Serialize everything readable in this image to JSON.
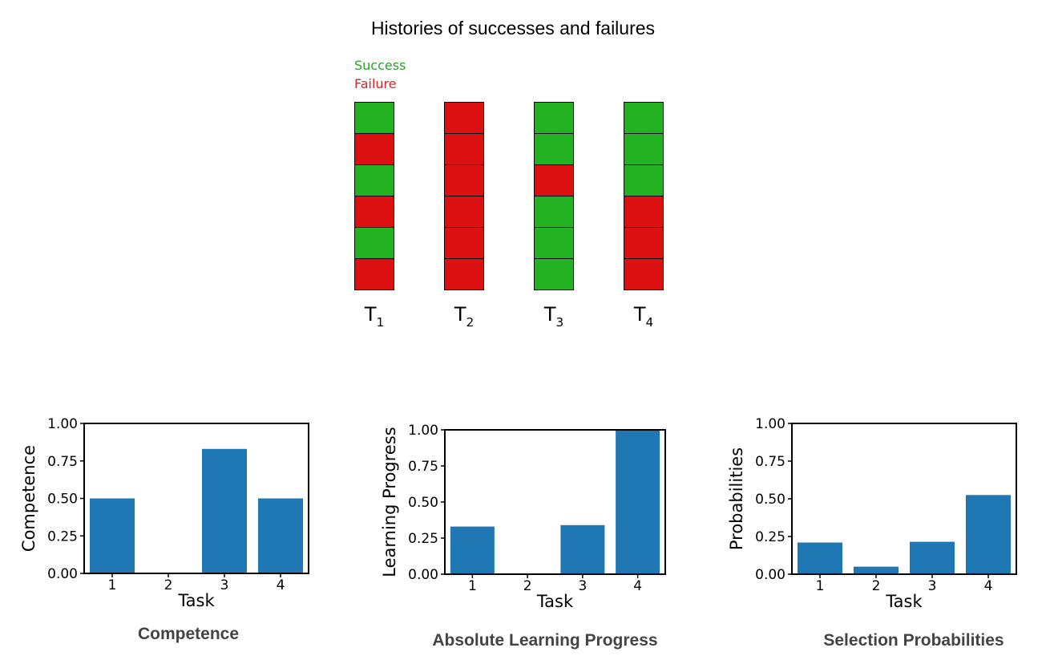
{
  "top_title": "Histories of successes and failures",
  "legend": {
    "success": "Success",
    "failure": "Failure"
  },
  "colors": {
    "success": "#22b222",
    "failure": "#dd1111",
    "bar": "#1f77b4"
  },
  "histories": [
    {
      "task": "T",
      "sub": "1",
      "cells": [
        "success",
        "failure",
        "success",
        "failure",
        "success",
        "failure"
      ]
    },
    {
      "task": "T",
      "sub": "2",
      "cells": [
        "failure",
        "failure",
        "failure",
        "failure",
        "failure",
        "failure"
      ]
    },
    {
      "task": "T",
      "sub": "3",
      "cells": [
        "success",
        "success",
        "failure",
        "success",
        "success",
        "success"
      ]
    },
    {
      "task": "T",
      "sub": "4",
      "cells": [
        "success",
        "success",
        "success",
        "failure",
        "failure",
        "failure"
      ]
    }
  ],
  "panel_titles": [
    "Competence",
    "Absolute Learning Progress",
    "Selection Probabilities"
  ],
  "chart_data": [
    {
      "type": "bar",
      "categories": [
        "1",
        "2",
        "3",
        "4"
      ],
      "values": [
        0.5,
        0.0,
        0.83,
        0.5
      ],
      "xlabel": "Task",
      "ylabel": "Competence",
      "ylim": [
        0,
        1
      ],
      "yticks": [
        "0.00",
        "0.25",
        "0.50",
        "0.75",
        "1.00"
      ],
      "grid": false
    },
    {
      "type": "bar",
      "categories": [
        "1",
        "2",
        "3",
        "4"
      ],
      "values": [
        0.33,
        0.0,
        0.34,
        1.0
      ],
      "xlabel": "Task",
      "ylabel": "Learning Progress",
      "ylim": [
        0,
        1
      ],
      "yticks": [
        "0.00",
        "0.25",
        "0.50",
        "0.75",
        "1.00"
      ],
      "grid": false
    },
    {
      "type": "bar",
      "categories": [
        "1",
        "2",
        "3",
        "4"
      ],
      "values": [
        0.21,
        0.05,
        0.215,
        0.525
      ],
      "xlabel": "Task",
      "ylabel": "Probabilities",
      "ylim": [
        0,
        1
      ],
      "yticks": [
        "0.00",
        "0.25",
        "0.50",
        "0.75",
        "1.00"
      ],
      "grid": false
    }
  ]
}
